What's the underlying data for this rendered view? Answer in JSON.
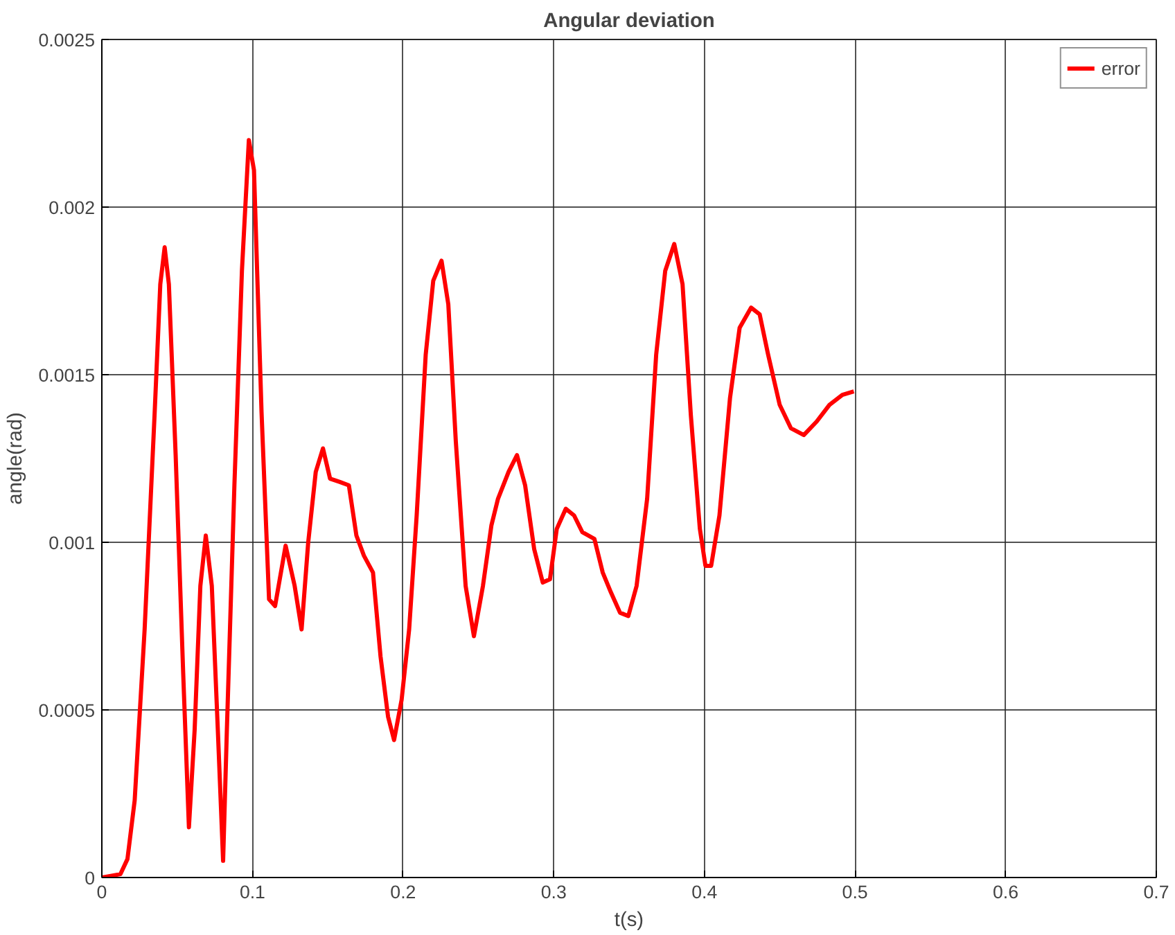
{
  "chart_data": {
    "type": "line",
    "title": "Angular deviation",
    "xlabel": "t(s)",
    "ylabel": "angle(rad)",
    "xlim": [
      0,
      0.7
    ],
    "xticks": [
      0,
      0.1,
      0.2,
      0.3,
      0.4,
      0.5,
      0.6,
      0.7
    ],
    "ylim": [
      0,
      0.0025
    ],
    "yticks": [
      0,
      0.0005,
      0.001,
      0.0015,
      0.002,
      0.0025
    ],
    "grid": true,
    "legend": "top right",
    "marker": "none",
    "line_style": "solid",
    "series": [
      {
        "name": "error",
        "color": "#ff0000",
        "x": [
          0,
          0.0123,
          0.017,
          0.0218,
          0.0284,
          0.035,
          0.0388,
          0.0417,
          0.0445,
          0.049,
          0.054,
          0.0578,
          0.0616,
          0.0654,
          0.069,
          0.073,
          0.077,
          0.0805,
          0.083,
          0.088,
          0.093,
          0.0976,
          0.101,
          0.106,
          0.111,
          0.115,
          0.122,
          0.128,
          0.1326,
          0.137,
          0.142,
          0.1468,
          0.1515,
          0.158,
          0.164,
          0.169,
          0.174,
          0.18,
          0.185,
          0.19,
          0.194,
          0.199,
          0.204,
          0.209,
          0.215,
          0.22,
          0.2255,
          0.23,
          0.235,
          0.2415,
          0.247,
          0.253,
          0.2586,
          0.263,
          0.27,
          0.2756,
          0.281,
          0.287,
          0.2927,
          0.2975,
          0.302,
          0.308,
          0.3135,
          0.319,
          0.327,
          0.3325,
          0.338,
          0.344,
          0.3495,
          0.355,
          0.362,
          0.368,
          0.374,
          0.38,
          0.3855,
          0.391,
          0.397,
          0.4007,
          0.4045,
          0.41,
          0.417,
          0.4234,
          0.431,
          0.4367,
          0.4423,
          0.45,
          0.4575,
          0.466,
          0.4745,
          0.483,
          0.4916,
          0.4992
        ],
        "values": [
          0,
          1e-05,
          5.5e-05,
          0.00023,
          0.00074,
          0.00138,
          0.00177,
          0.00188,
          0.00177,
          0.00126,
          0.00061,
          0.00015,
          0.00044,
          0.00087,
          0.00102,
          0.00087,
          0.00044,
          5e-05,
          0.00044,
          0.00117,
          0.00181,
          0.0022,
          0.00211,
          0.00139,
          0.00083,
          0.00081,
          0.00099,
          0.00087,
          0.00074,
          0.001,
          0.00121,
          0.00128,
          0.00119,
          0.00118,
          0.00117,
          0.00102,
          0.00096,
          0.00091,
          0.00066,
          0.00048,
          0.00041,
          0.00053,
          0.00074,
          0.00108,
          0.00156,
          0.00178,
          0.00184,
          0.00171,
          0.0013,
          0.00087,
          0.00072,
          0.00087,
          0.00105,
          0.00113,
          0.00121,
          0.00126,
          0.00117,
          0.00098,
          0.00088,
          0.00089,
          0.00104,
          0.0011,
          0.00108,
          0.00103,
          0.00101,
          0.00091,
          0.00085,
          0.00079,
          0.00078,
          0.00087,
          0.00113,
          0.00156,
          0.00181,
          0.00189,
          0.00177,
          0.00138,
          0.00104,
          0.00093,
          0.00093,
          0.00108,
          0.00143,
          0.00164,
          0.0017,
          0.00168,
          0.00156,
          0.00141,
          0.00134,
          0.00132,
          0.00136,
          0.00141,
          0.00144,
          0.00145
        ]
      }
    ]
  }
}
